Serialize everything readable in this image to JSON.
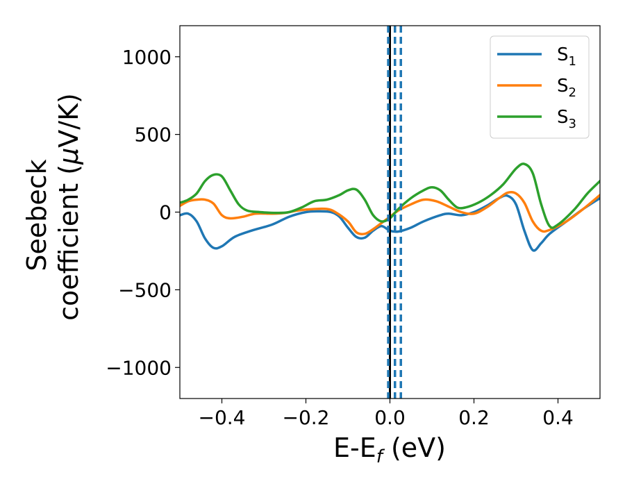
{
  "chart_data": {
    "type": "line",
    "xlabel_main": "E-E",
    "xlabel_sub": "f",
    "xlabel_unit": " (eV)",
    "ylabel_line1": "Seebeck",
    "ylabel_line2": "coefficient  (",
    "ylabel_mu": "μ",
    "ylabel_unit": "V/K)",
    "xlim": [
      -0.5,
      0.5
    ],
    "ylim": [
      -1200,
      1200
    ],
    "xticks": [
      -0.4,
      -0.2,
      0.0,
      0.2,
      0.4
    ],
    "xtick_labels": [
      "−0.4",
      "−0.2",
      "0.0",
      "0.2",
      "0.4"
    ],
    "yticks": [
      1000,
      500,
      0,
      -500,
      -1000
    ],
    "ytick_labels": [
      "1000",
      "500",
      "0",
      "−500",
      "−1000"
    ],
    "grid": false,
    "legend_position": "top-right",
    "series": [
      {
        "name_main": "S",
        "name_sub": "1",
        "color": "#1f77b4",
        "points": [
          [
            -0.5,
            -20
          ],
          [
            -0.48,
            -10
          ],
          [
            -0.46,
            -60
          ],
          [
            -0.44,
            -170
          ],
          [
            -0.42,
            -230
          ],
          [
            -0.4,
            -220
          ],
          [
            -0.37,
            -160
          ],
          [
            -0.33,
            -120
          ],
          [
            -0.28,
            -80
          ],
          [
            -0.24,
            -30
          ],
          [
            -0.2,
            0
          ],
          [
            -0.17,
            5
          ],
          [
            -0.14,
            0
          ],
          [
            -0.12,
            -30
          ],
          [
            -0.1,
            -100
          ],
          [
            -0.08,
            -160
          ],
          [
            -0.06,
            -165
          ],
          [
            -0.04,
            -120
          ],
          [
            -0.02,
            -90
          ],
          [
            0.0,
            -120
          ],
          [
            0.02,
            -125
          ],
          [
            0.05,
            -100
          ],
          [
            0.08,
            -60
          ],
          [
            0.12,
            -20
          ],
          [
            0.14,
            -10
          ],
          [
            0.17,
            -20
          ],
          [
            0.2,
            0
          ],
          [
            0.23,
            40
          ],
          [
            0.26,
            90
          ],
          [
            0.28,
            105
          ],
          [
            0.3,
            50
          ],
          [
            0.32,
            -120
          ],
          [
            0.34,
            -245
          ],
          [
            0.36,
            -200
          ],
          [
            0.38,
            -140
          ],
          [
            0.42,
            -60
          ],
          [
            0.46,
            20
          ],
          [
            0.5,
            90
          ]
        ]
      },
      {
        "name_main": "S",
        "name_sub": "2",
        "color": "#ff7f0e",
        "points": [
          [
            -0.5,
            40
          ],
          [
            -0.48,
            70
          ],
          [
            -0.46,
            80
          ],
          [
            -0.44,
            80
          ],
          [
            -0.42,
            55
          ],
          [
            -0.4,
            -20
          ],
          [
            -0.38,
            -40
          ],
          [
            -0.35,
            -30
          ],
          [
            -0.32,
            -10
          ],
          [
            -0.28,
            -10
          ],
          [
            -0.25,
            -5
          ],
          [
            -0.22,
            10
          ],
          [
            -0.18,
            20
          ],
          [
            -0.15,
            20
          ],
          [
            -0.13,
            0
          ],
          [
            -0.1,
            -60
          ],
          [
            -0.08,
            -130
          ],
          [
            -0.06,
            -140
          ],
          [
            -0.04,
            -110
          ],
          [
            -0.02,
            -70
          ],
          [
            0.0,
            -30
          ],
          [
            0.02,
            10
          ],
          [
            0.05,
            50
          ],
          [
            0.08,
            80
          ],
          [
            0.11,
            70
          ],
          [
            0.14,
            35
          ],
          [
            0.17,
            0
          ],
          [
            0.2,
            -10
          ],
          [
            0.23,
            30
          ],
          [
            0.26,
            90
          ],
          [
            0.28,
            125
          ],
          [
            0.3,
            120
          ],
          [
            0.32,
            60
          ],
          [
            0.34,
            -60
          ],
          [
            0.36,
            -120
          ],
          [
            0.38,
            -115
          ],
          [
            0.42,
            -60
          ],
          [
            0.46,
            20
          ],
          [
            0.5,
            110
          ]
        ]
      },
      {
        "name_main": "S",
        "name_sub": "3",
        "color": "#2ca02c",
        "points": [
          [
            -0.5,
            60
          ],
          [
            -0.48,
            80
          ],
          [
            -0.46,
            120
          ],
          [
            -0.44,
            200
          ],
          [
            -0.42,
            240
          ],
          [
            -0.4,
            230
          ],
          [
            -0.38,
            140
          ],
          [
            -0.36,
            50
          ],
          [
            -0.34,
            10
          ],
          [
            -0.31,
            0
          ],
          [
            -0.27,
            -5
          ],
          [
            -0.24,
            0
          ],
          [
            -0.21,
            30
          ],
          [
            -0.18,
            70
          ],
          [
            -0.15,
            80
          ],
          [
            -0.12,
            110
          ],
          [
            -0.1,
            140
          ],
          [
            -0.08,
            145
          ],
          [
            -0.06,
            80
          ],
          [
            -0.04,
            -20
          ],
          [
            -0.02,
            -60
          ],
          [
            0.0,
            -40
          ],
          [
            0.02,
            20
          ],
          [
            0.05,
            90
          ],
          [
            0.08,
            140
          ],
          [
            0.1,
            160
          ],
          [
            0.12,
            140
          ],
          [
            0.14,
            80
          ],
          [
            0.16,
            30
          ],
          [
            0.18,
            30
          ],
          [
            0.21,
            60
          ],
          [
            0.24,
            110
          ],
          [
            0.27,
            180
          ],
          [
            0.3,
            280
          ],
          [
            0.32,
            310
          ],
          [
            0.34,
            250
          ],
          [
            0.36,
            50
          ],
          [
            0.38,
            -90
          ],
          [
            0.4,
            -80
          ],
          [
            0.44,
            20
          ],
          [
            0.47,
            120
          ],
          [
            0.5,
            200
          ]
        ]
      }
    ],
    "vlines": [
      {
        "x": 0.0,
        "color": "#000000",
        "style": "solid"
      },
      {
        "x": -0.004,
        "color": "#1f77b4",
        "style": "dashed"
      },
      {
        "x": 0.012,
        "color": "#1f77b4",
        "style": "dashed"
      },
      {
        "x": 0.026,
        "color": "#1f77b4",
        "style": "dashed"
      }
    ]
  }
}
